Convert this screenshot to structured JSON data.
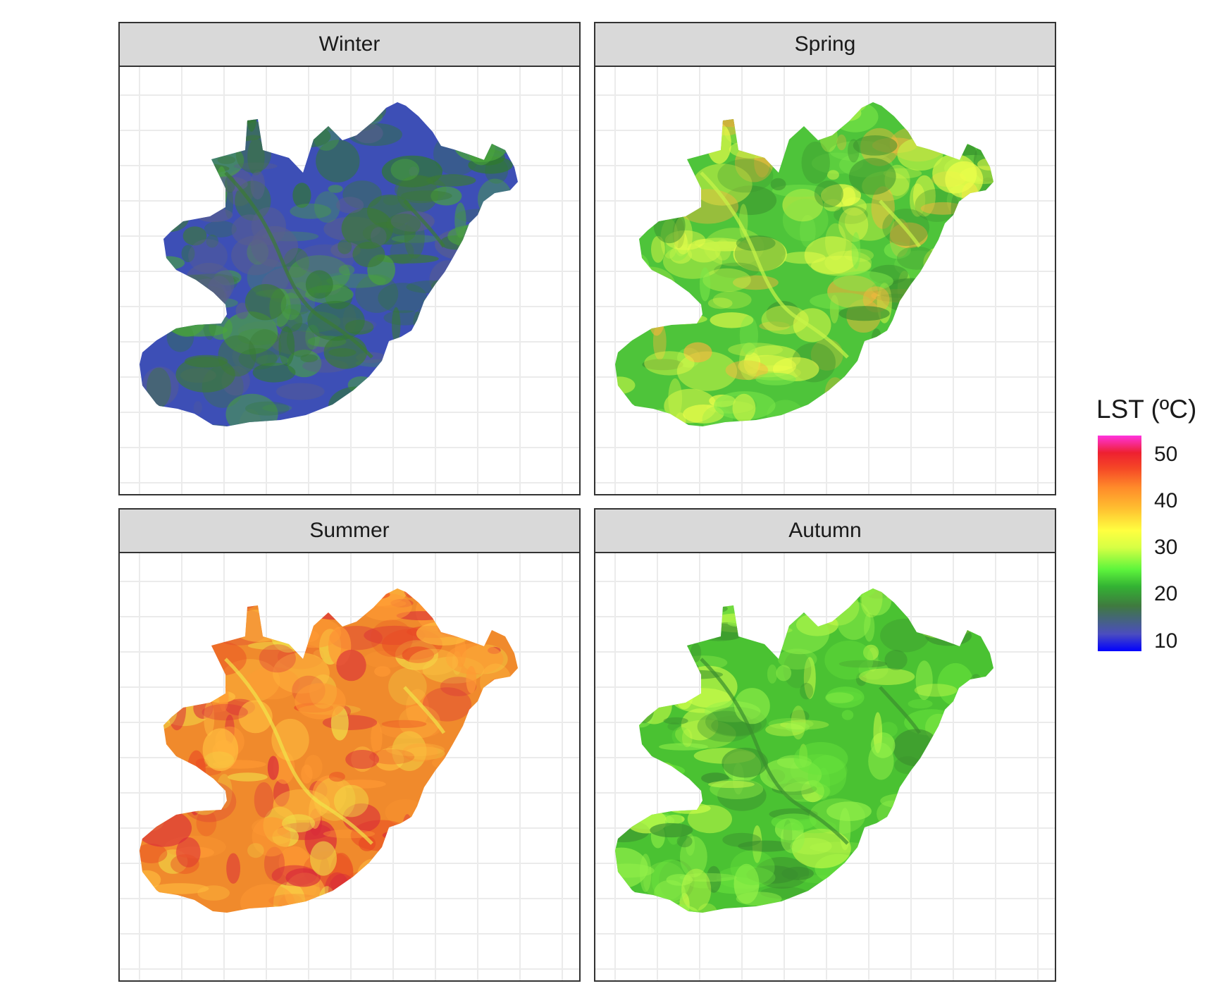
{
  "panels": [
    {
      "title": "Winter",
      "colors": [
        "#3d4fb6",
        "#5a5f8c",
        "#3b7a35",
        "#2f7a2c",
        "#4aa63c"
      ]
    },
    {
      "title": "Spring",
      "colors": [
        "#4ec43a",
        "#7ee94a",
        "#c8f548",
        "#f0ff4a",
        "#f7b63e",
        "#3a8f2e"
      ]
    },
    {
      "title": "Summer",
      "colors": [
        "#f08a2c",
        "#ffc040",
        "#f1e44a",
        "#e94a24",
        "#ff9a34",
        "#d8283a"
      ]
    },
    {
      "title": "Autumn",
      "colors": [
        "#4ac232",
        "#69e43c",
        "#3a8f2e",
        "#95f24a",
        "#cfff4a"
      ]
    }
  ],
  "legend": {
    "title": "LST (ºC)",
    "ticks": [
      "50",
      "40",
      "30",
      "20",
      "10"
    ]
  }
}
